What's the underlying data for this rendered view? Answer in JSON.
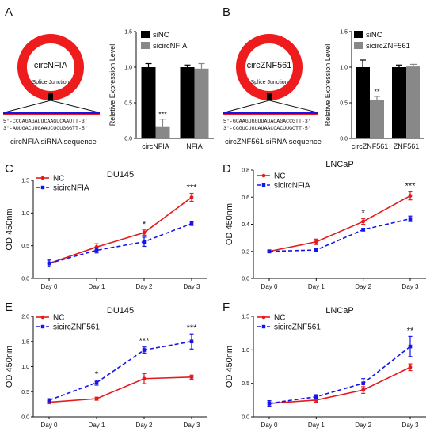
{
  "panels": {
    "A": {
      "letter": "A",
      "circle_label": "circNFIA",
      "junction_label": "Splice Junction",
      "seq1": "5'-CCCAGAGAUUCAAGUCAAUTT-3'",
      "seq2": "3'-AUUGACUUGAAUCUCUGGGTT-5'",
      "caption": "circNFIA siRNA sequence"
    },
    "B": {
      "letter": "B",
      "circle_label": "circZNF561",
      "junction_label": "Splice Junction",
      "seq1": "5'-GCAAGUGGUUAUACAGACCGTT-3'",
      "seq2": "3'-CGGUCUGUAUAACCACUUGCTT-5'",
      "caption": "circZNF561 siRNA sequence"
    },
    "C": {
      "letter": "C"
    },
    "D": {
      "letter": "D"
    },
    "E": {
      "letter": "E"
    },
    "F": {
      "letter": "F"
    }
  },
  "colors": {
    "black_bar": "#000000",
    "gray_bar": "#888888",
    "nc_red": "#e41a1c",
    "si_blue": "#1515e6",
    "ring_red": "#ee1c1c"
  },
  "chart_data": [
    {
      "id": "A-bar",
      "type": "bar",
      "ylabel": "Relative Expression Level",
      "ylim": [
        0,
        1.5
      ],
      "yticks": [
        "0.0",
        "0.5",
        "1.0",
        "1.5"
      ],
      "categories": [
        "circNFIA",
        "NFIA"
      ],
      "series": [
        {
          "name": "siNC",
          "values": [
            1.0,
            1.0
          ],
          "errors": [
            0.05,
            0.03
          ],
          "color": "#000000"
        },
        {
          "name": "sicircNFIA",
          "values": [
            0.17,
            0.98
          ],
          "errors": [
            0.1,
            0.07
          ],
          "color": "#888888"
        }
      ],
      "annotations": [
        {
          "text": "***",
          "category": 0,
          "series": 1
        }
      ]
    },
    {
      "id": "B-bar",
      "type": "bar",
      "ylabel": "Relative Expression Level",
      "ylim": [
        0,
        1.5
      ],
      "yticks": [
        "0.0",
        "0.5",
        "1.0",
        "1.5"
      ],
      "categories": [
        "circZNF561",
        "ZNF561"
      ],
      "series": [
        {
          "name": "siNC",
          "values": [
            1.0,
            1.0
          ],
          "errors": [
            0.1,
            0.03
          ],
          "color": "#000000"
        },
        {
          "name": "sicircZNF561",
          "values": [
            0.54,
            1.01
          ],
          "errors": [
            0.05,
            0.03
          ],
          "color": "#888888"
        }
      ],
      "annotations": [
        {
          "text": "**",
          "category": 0,
          "series": 1
        }
      ]
    },
    {
      "id": "C-line",
      "type": "line",
      "title": "DU145",
      "ylabel": "OD 450nm",
      "ylim": [
        0,
        1.5
      ],
      "yticks": [
        "0.0",
        "0.5",
        "1.0",
        "1.5"
      ],
      "categories": [
        "Day 0",
        "Day 1",
        "Day 2",
        "Day 3"
      ],
      "series": [
        {
          "name": "NC",
          "values": [
            0.23,
            0.48,
            0.7,
            1.24
          ],
          "errors": [
            0.05,
            0.05,
            0.04,
            0.06
          ],
          "color": "#e41a1c",
          "dashed": false
        },
        {
          "name": "sicircNFIA",
          "values": [
            0.23,
            0.43,
            0.56,
            0.84
          ],
          "errors": [
            0.05,
            0.04,
            0.07,
            0.03
          ],
          "color": "#1515e6",
          "dashed": true
        }
      ],
      "annotations": [
        {
          "text": "*",
          "category": 2
        },
        {
          "text": "***",
          "category": 3
        }
      ]
    },
    {
      "id": "D-line",
      "type": "line",
      "title": "LNCaP",
      "ylabel": "OD 450nm",
      "ylim": [
        0,
        0.8
      ],
      "yticks": [
        "0.0",
        "0.2",
        "0.4",
        "0.6",
        "0.8"
      ],
      "categories": [
        "Day 0",
        "Day 1",
        "Day 2",
        "Day 3"
      ],
      "series": [
        {
          "name": "NC",
          "values": [
            0.2,
            0.27,
            0.42,
            0.61
          ],
          "errors": [
            0.01,
            0.02,
            0.02,
            0.03
          ],
          "color": "#e41a1c",
          "dashed": false
        },
        {
          "name": "sicircNFIA",
          "values": [
            0.2,
            0.21,
            0.36,
            0.44
          ],
          "errors": [
            0.01,
            0.01,
            0.01,
            0.02
          ],
          "color": "#1515e6",
          "dashed": true
        }
      ],
      "annotations": [
        {
          "text": "*",
          "category": 2
        },
        {
          "text": "***",
          "category": 3
        }
      ]
    },
    {
      "id": "E-line",
      "type": "line",
      "title": "DU145",
      "ylabel": "OD 450nm",
      "ylim": [
        0,
        2.0
      ],
      "yticks": [
        "0.0",
        "0.5",
        "1.0",
        "1.5",
        "2.0"
      ],
      "categories": [
        "Day 0",
        "Day 1",
        "Day 2",
        "Day 3"
      ],
      "series": [
        {
          "name": "NC",
          "values": [
            0.29,
            0.36,
            0.76,
            0.79
          ],
          "errors": [
            0.03,
            0.03,
            0.1,
            0.04
          ],
          "color": "#e41a1c",
          "dashed": false
        },
        {
          "name": "sicircZNF561",
          "values": [
            0.33,
            0.68,
            1.33,
            1.5
          ],
          "errors": [
            0.03,
            0.05,
            0.06,
            0.15
          ],
          "color": "#1515e6",
          "dashed": true
        }
      ],
      "annotations": [
        {
          "text": "*",
          "category": 1
        },
        {
          "text": "***",
          "category": 2
        },
        {
          "text": "***",
          "category": 3
        }
      ]
    },
    {
      "id": "F-line",
      "type": "line",
      "title": "LNCaP",
      "ylabel": "OD 450nm",
      "ylim": [
        0,
        1.5
      ],
      "yticks": [
        "0.0",
        "0.5",
        "1.0",
        "1.5"
      ],
      "categories": [
        "Day 0",
        "Day 1",
        "Day 2",
        "Day 3"
      ],
      "series": [
        {
          "name": "NC",
          "values": [
            0.2,
            0.25,
            0.4,
            0.74
          ],
          "errors": [
            0.04,
            0.03,
            0.05,
            0.05
          ],
          "color": "#e41a1c",
          "dashed": false
        },
        {
          "name": "sicircZNF561",
          "values": [
            0.2,
            0.3,
            0.5,
            1.05
          ],
          "errors": [
            0.04,
            0.03,
            0.07,
            0.15
          ],
          "color": "#1515e6",
          "dashed": true
        }
      ],
      "annotations": [
        {
          "text": "**",
          "category": 3
        }
      ]
    }
  ]
}
